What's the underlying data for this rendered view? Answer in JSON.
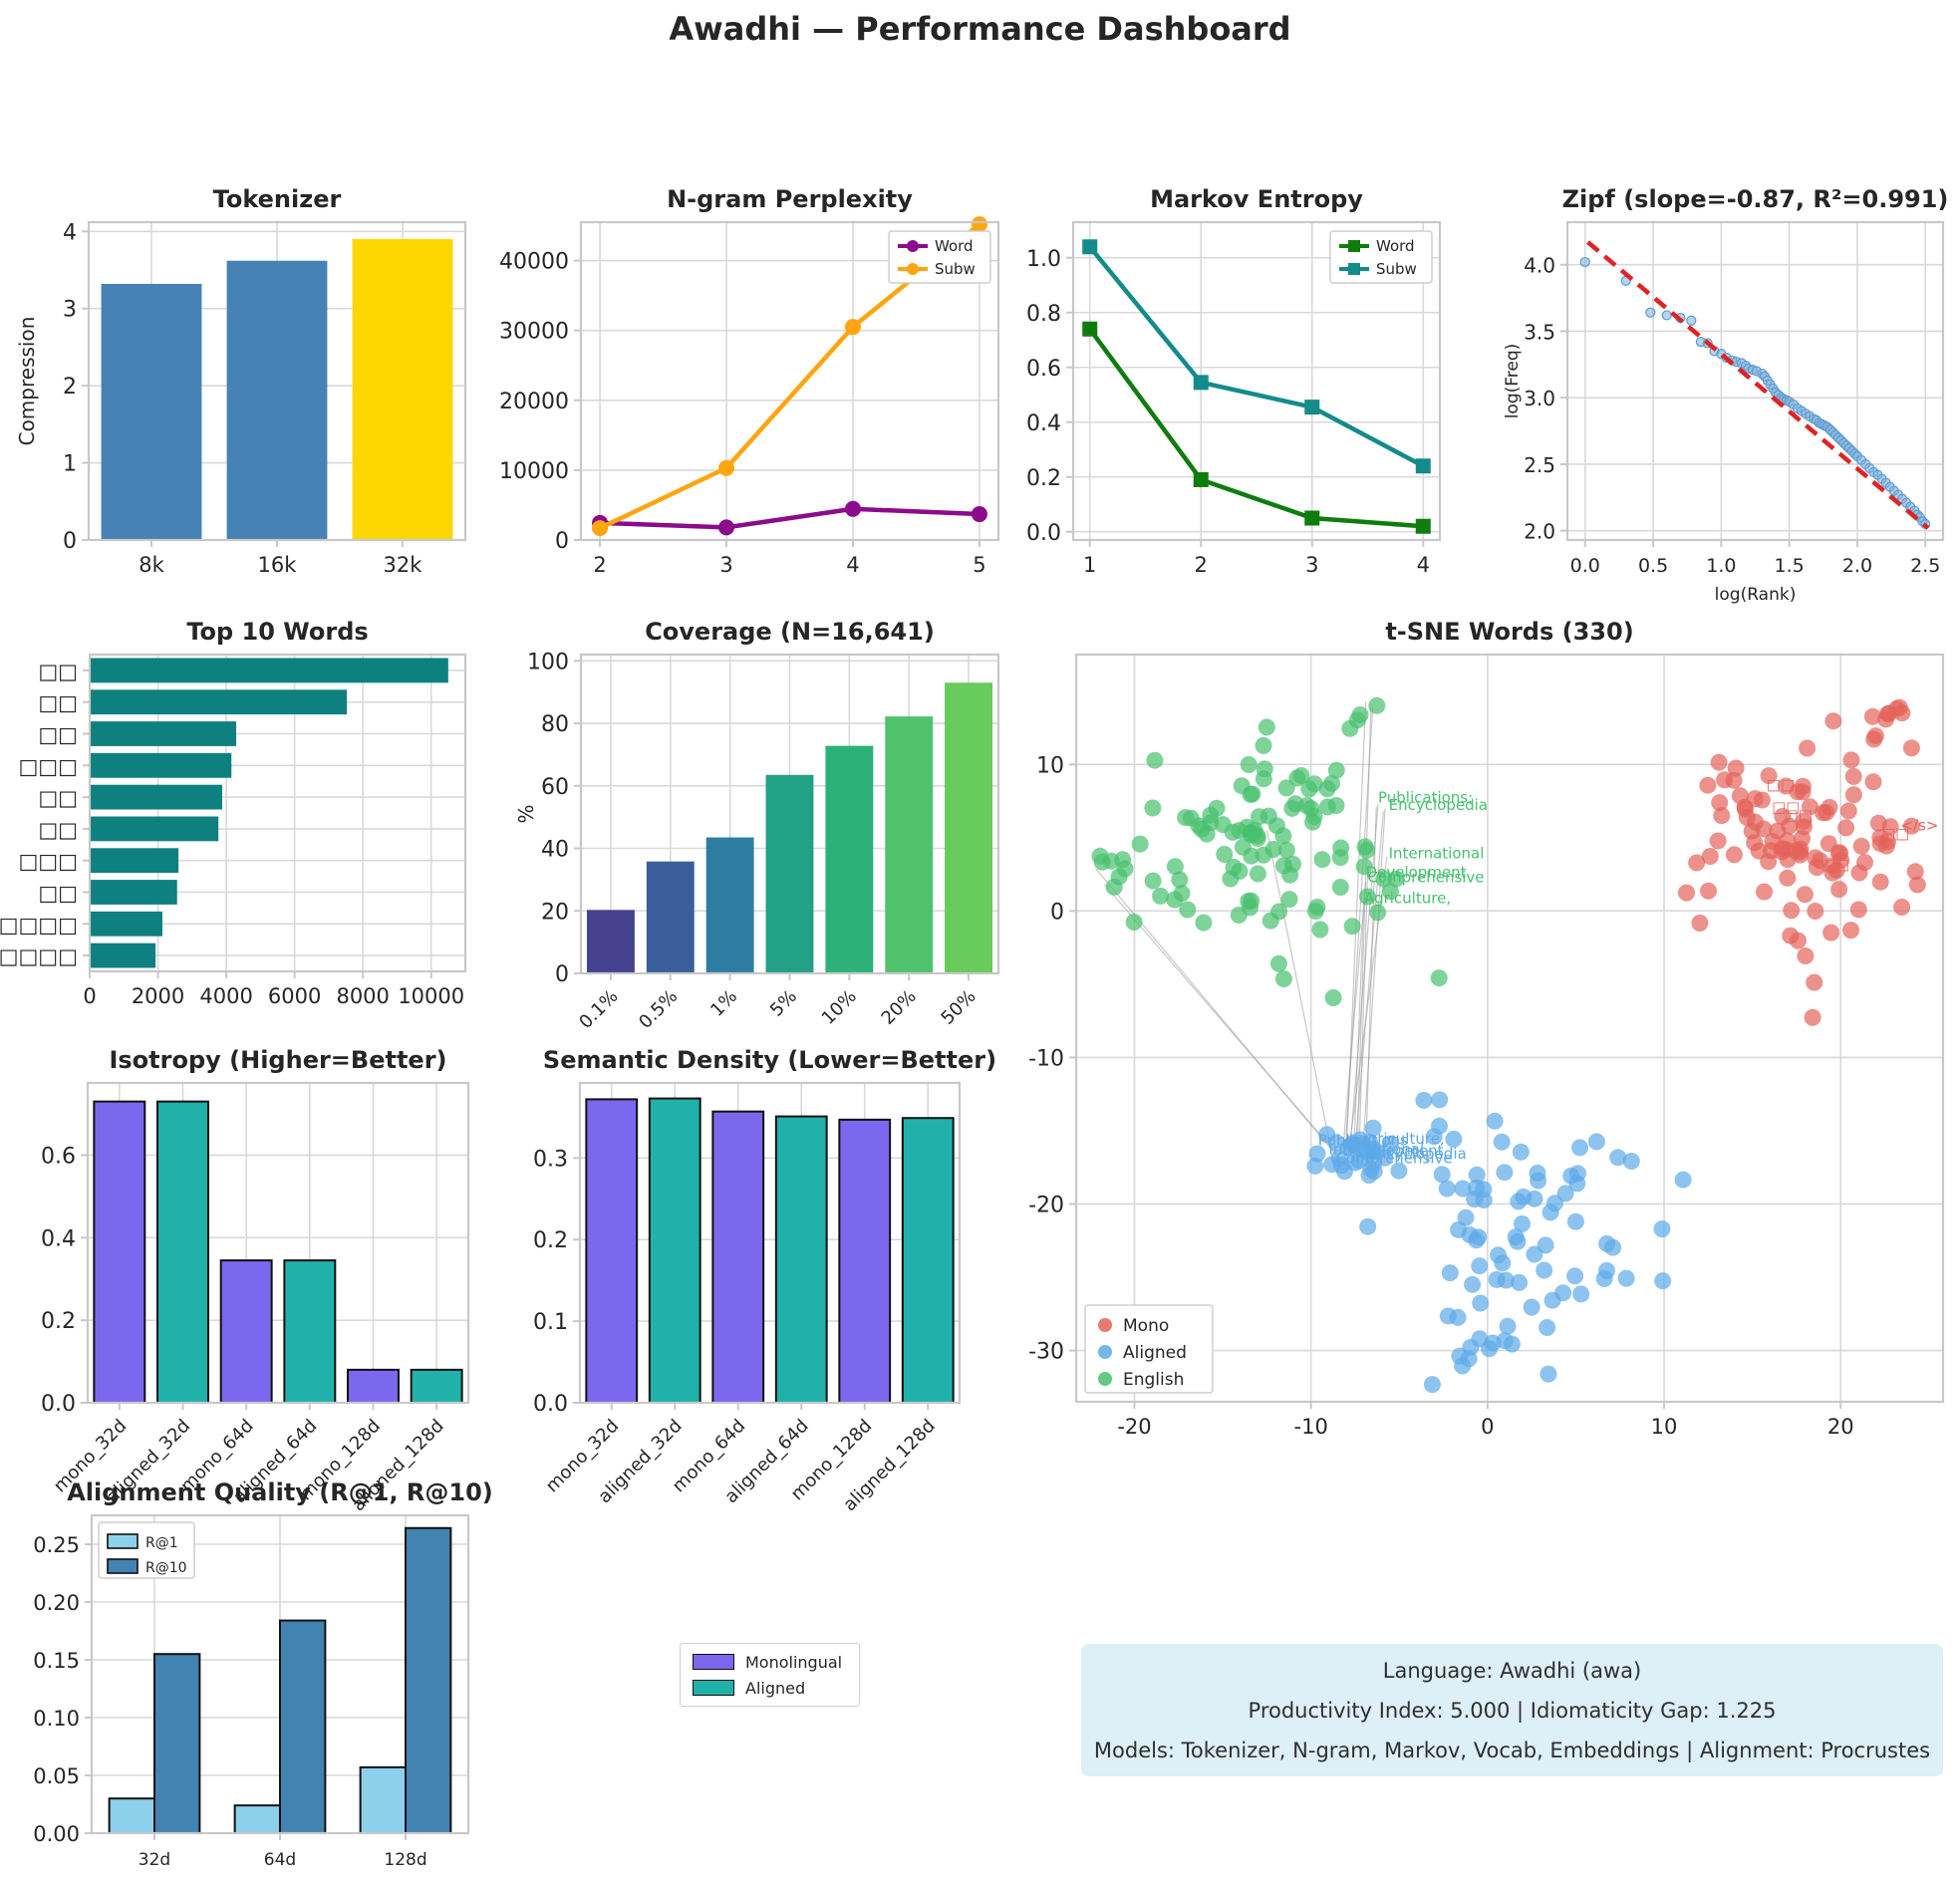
{
  "title": "Awadhi — Performance Dashboard",
  "info_box": {
    "bg": "#ddeff7",
    "lines": [
      "Language: Awadhi (awa)",
      "Productivity Index: 5.000  |  Idiomaticity Gap: 1.225",
      "Models: Tokenizer, N-gram, Markov, Vocab, Embeddings  |  Alignment: Procrustes"
    ]
  },
  "legend_box": {
    "items": [
      {
        "label": "Monolingual",
        "color": "#7b68ee"
      },
      {
        "label": "Aligned",
        "color": "#20b2aa"
      }
    ]
  },
  "chart_data": [
    {
      "id": "tokenizer",
      "type": "bar",
      "title": "Tokenizer",
      "ylabel": "Compression",
      "categories": [
        "8k",
        "16k",
        "32k"
      ],
      "values": [
        3.32,
        3.62,
        3.9
      ],
      "colors": [
        "#4682b4",
        "#4682b4",
        "#ffd500"
      ],
      "ylim": [
        0,
        4.12
      ],
      "yticks": [
        0,
        1,
        2,
        3,
        4
      ],
      "ytick_labels": [
        "0",
        "1",
        "2",
        "3",
        "4"
      ],
      "grid": true
    },
    {
      "id": "ngram",
      "type": "line",
      "title": "N-gram Perplexity",
      "x": [
        2,
        3,
        4,
        5
      ],
      "xticks": [
        2,
        3,
        4,
        5
      ],
      "xtick_labels": [
        "2",
        "3",
        "4",
        "5"
      ],
      "xlim": [
        1.85,
        5.15
      ],
      "ylim": [
        0,
        45500
      ],
      "yticks": [
        0,
        10000,
        20000,
        30000,
        40000
      ],
      "ytick_labels": [
        "0",
        "10000",
        "20000",
        "30000",
        "40000"
      ],
      "marker": "circle",
      "legend_pos": "top-right",
      "series": [
        {
          "name": "Word",
          "color": "#8c0a8c",
          "values": [
            2450,
            1800,
            4450,
            3700
          ]
        },
        {
          "name": "Subw",
          "color": "#ffa510",
          "values": [
            1700,
            10300,
            30500,
            45200
          ]
        }
      ]
    },
    {
      "id": "markov",
      "type": "line",
      "title": "Markov Entropy",
      "x": [
        1,
        2,
        3,
        4
      ],
      "xticks": [
        1,
        2,
        3,
        4
      ],
      "xtick_labels": [
        "1",
        "2",
        "3",
        "4"
      ],
      "xlim": [
        0.85,
        4.15
      ],
      "ylim": [
        -0.03,
        1.13
      ],
      "yticks": [
        0,
        0.2,
        0.4,
        0.6,
        0.8,
        1.0
      ],
      "ytick_labels": [
        "0.0",
        "0.2",
        "0.4",
        "0.6",
        "0.8",
        "1.0"
      ],
      "marker": "square",
      "legend_pos": "top-right",
      "series": [
        {
          "name": "Word",
          "color": "#0e7d0e",
          "values": [
            0.74,
            0.19,
            0.05,
            0.02
          ]
        },
        {
          "name": "Subw",
          "color": "#148b8b",
          "values": [
            1.04,
            0.545,
            0.455,
            0.24
          ]
        }
      ]
    },
    {
      "id": "zipf",
      "type": "scatter",
      "title": "Zipf (slope=-0.87, R²=0.991)",
      "xlabel": "log(Rank)",
      "ylabel": "log(Freq)",
      "xlim": [
        -0.13,
        2.63
      ],
      "ylim": [
        1.93,
        4.32
      ],
      "xticks": [
        0,
        0.5,
        1,
        1.5,
        2,
        2.5
      ],
      "xtick_labels": [
        "0.0",
        "0.5",
        "1.0",
        "1.5",
        "2.0",
        "2.5"
      ],
      "yticks": [
        2,
        2.5,
        3,
        3.5,
        4
      ],
      "ytick_labels": [
        "2.0",
        "2.5",
        "3.0",
        "3.5",
        "4.0"
      ],
      "point_color": "#7eafdb",
      "point_edge": "#5b9bd0",
      "fit_line": {
        "color": "#e32222",
        "from": [
          0.02,
          4.17
        ],
        "to": [
          2.52,
          2.02
        ]
      },
      "points": [
        [
          0.0,
          4.02
        ],
        [
          0.3,
          3.88
        ],
        [
          0.48,
          3.64
        ],
        [
          0.6,
          3.62
        ],
        [
          0.7,
          3.6
        ],
        [
          0.78,
          3.58
        ],
        [
          0.85,
          3.42
        ],
        [
          0.9,
          3.41
        ],
        [
          0.95,
          3.35
        ],
        [
          1.0,
          3.33
        ],
        [
          1.04,
          3.3
        ],
        [
          1.08,
          3.28
        ],
        [
          1.11,
          3.27
        ],
        [
          1.15,
          3.26
        ],
        [
          1.18,
          3.24
        ],
        [
          1.2,
          3.22
        ],
        [
          1.23,
          3.21
        ],
        [
          1.26,
          3.2
        ],
        [
          1.3,
          3.18
        ],
        [
          1.32,
          3.16
        ],
        [
          1.34,
          3.13
        ],
        [
          1.36,
          3.1
        ],
        [
          1.38,
          3.07
        ],
        [
          1.4,
          3.04
        ],
        [
          1.42,
          3.02
        ],
        [
          1.44,
          3.0
        ],
        [
          1.46,
          2.99
        ],
        [
          1.48,
          2.98
        ],
        [
          1.5,
          2.97
        ],
        [
          1.53,
          2.95
        ],
        [
          1.56,
          2.92
        ],
        [
          1.59,
          2.9
        ],
        [
          1.62,
          2.88
        ],
        [
          1.65,
          2.86
        ],
        [
          1.68,
          2.84
        ],
        [
          1.7,
          2.83
        ],
        [
          1.72,
          2.81
        ],
        [
          1.74,
          2.8
        ],
        [
          1.76,
          2.79
        ],
        [
          1.78,
          2.78
        ],
        [
          1.8,
          2.76
        ],
        [
          1.82,
          2.74
        ],
        [
          1.84,
          2.72
        ],
        [
          1.86,
          2.7
        ],
        [
          1.88,
          2.68
        ],
        [
          1.9,
          2.66
        ],
        [
          1.92,
          2.64
        ],
        [
          1.94,
          2.62
        ],
        [
          1.96,
          2.6
        ],
        [
          1.98,
          2.58
        ],
        [
          2.0,
          2.56
        ],
        [
          2.03,
          2.53
        ],
        [
          2.06,
          2.5
        ],
        [
          2.09,
          2.47
        ],
        [
          2.12,
          2.44
        ],
        [
          2.15,
          2.42
        ],
        [
          2.18,
          2.39
        ],
        [
          2.21,
          2.36
        ],
        [
          2.24,
          2.33
        ],
        [
          2.27,
          2.3
        ],
        [
          2.3,
          2.27
        ],
        [
          2.33,
          2.24
        ],
        [
          2.36,
          2.21
        ],
        [
          2.39,
          2.18
        ],
        [
          2.42,
          2.15
        ],
        [
          2.44,
          2.12
        ],
        [
          2.46,
          2.1
        ],
        [
          2.48,
          2.07
        ],
        [
          2.5,
          2.05
        ]
      ]
    },
    {
      "id": "top_words",
      "type": "hbar",
      "title": "Top 10 Words",
      "categories": [
        "□□",
        "□□",
        "□□",
        "□□□",
        "□□",
        "□□",
        "□□□",
        "□□",
        "□□□□□",
        "□□□□"
      ],
      "values": [
        10500,
        7530,
        4290,
        4150,
        3880,
        3770,
        2600,
        2560,
        2130,
        1930
      ],
      "color": "#0f8080",
      "xlim": [
        0,
        11000
      ],
      "xticks": [
        0,
        2000,
        4000,
        6000,
        8000,
        10000
      ],
      "xtick_labels": [
        "0",
        "2000",
        "4000",
        "6000",
        "8000",
        "10000"
      ]
    },
    {
      "id": "coverage",
      "type": "bar",
      "title": "Coverage (N=16,641)",
      "ylabel": "%",
      "categories": [
        "0.1%",
        "0.5%",
        "1%",
        "5%",
        "10%",
        "20%",
        "50%"
      ],
      "values": [
        20.3,
        35.8,
        43.5,
        63.5,
        72.8,
        82.2,
        93
      ],
      "colors": [
        "#45418f",
        "#3a5f9b",
        "#2d7da0",
        "#22a186",
        "#2cb179",
        "#4ec36b",
        "#68cb5b"
      ],
      "ylim": [
        0,
        102
      ],
      "yticks": [
        0,
        20,
        40,
        60,
        80,
        100
      ],
      "ytick_labels": [
        "0",
        "20",
        "40",
        "60",
        "80",
        "100"
      ],
      "rotate_xticks": 45
    },
    {
      "id": "tsne",
      "type": "scatter-clusters",
      "title": "t-SNE Words (330)",
      "xlim": [
        -23.3,
        25.8
      ],
      "ylim": [
        -33.5,
        17.5
      ],
      "xticks": [
        -20,
        -10,
        0,
        10,
        20
      ],
      "xtick_labels": [
        "-20",
        "-10",
        "0",
        "10",
        "20"
      ],
      "yticks": [
        10,
        0,
        -10,
        -20,
        -30
      ],
      "ytick_labels": [
        "10",
        "0",
        "-10",
        "-20",
        "-30"
      ],
      "legend_pos": "bottom-left",
      "clusters": [
        {
          "name": "Mono",
          "color": "#e4635a",
          "seed": 7,
          "groups": [
            {
              "n": 96,
              "cx": 18.0,
              "cy": 5.2,
              "sx": 3.2,
              "sy": 3.2
            },
            {
              "n": 8,
              "cx": 23.3,
              "cy": 13.5,
              "sx": 1.0,
              "sy": 0.9
            },
            {
              "n": 3,
              "cx": 23.2,
              "cy": 4.8,
              "sx": 0.7,
              "sy": 0.7
            },
            {
              "n": 2,
              "cx": 17.5,
              "cy": -3.0,
              "sx": 0.4,
              "sy": 0.4
            },
            {
              "n": 1,
              "cx": 18.3,
              "cy": -7.2,
              "sx": 0.1,
              "sy": 0.1
            }
          ]
        },
        {
          "name": "Aligned",
          "color": "#5da9e8",
          "seed": 11,
          "groups": [
            {
              "n": 72,
              "cx": 2.2,
              "cy": -21.5,
              "sx": 3.8,
              "sy": 3.8
            },
            {
              "n": 28,
              "cx": -7.7,
              "cy": -16.9,
              "sx": 1.0,
              "sy": 0.85
            },
            {
              "n": 10,
              "cx": 0.6,
              "cy": -29.8,
              "sx": 1.3,
              "sy": 0.9
            }
          ]
        },
        {
          "name": "English",
          "color": "#47c16e",
          "seed": 3,
          "groups": [
            {
              "n": 100,
              "cx": -12.2,
              "cy": 4.8,
              "sx": 4.3,
              "sy": 3.5
            },
            {
              "n": 6,
              "cx": -20.9,
              "cy": 1.8,
              "sx": 0.9,
              "sy": 1.3
            },
            {
              "n": 4,
              "cx": -6.7,
              "cy": 13.6,
              "sx": 0.5,
              "sy": 0.8
            }
          ]
        }
      ],
      "links": {
        "color": "#9a9a9a",
        "pairs": [
          [
            [
              -6.9,
              14.3
            ],
            [
              -8.0,
              -16.6
            ]
          ],
          [
            [
              -6.6,
              14.1
            ],
            [
              -7.4,
              -16.9
            ]
          ],
          [
            [
              -6.2,
              7.3
            ],
            [
              -7.8,
              -16.4
            ]
          ],
          [
            [
              -5.8,
              7.0
            ],
            [
              -7.1,
              -17.0
            ]
          ],
          [
            [
              -5.7,
              3.7
            ],
            [
              -7.9,
              -16.8
            ]
          ],
          [
            [
              -6.8,
              2.3
            ],
            [
              -7.3,
              -17.4
            ]
          ],
          [
            [
              -6.9,
              2.0
            ],
            [
              -8.2,
              -16.5
            ]
          ],
          [
            [
              -7.0,
              0.6
            ],
            [
              -7.6,
              -17.1
            ]
          ],
          [
            [
              -22.2,
              2.9
            ],
            [
              -8.4,
              -16.9
            ]
          ],
          [
            [
              -21.7,
              1.8
            ],
            [
              -7.8,
              -17.6
            ]
          ],
          [
            [
              -12.5,
              5.5
            ],
            [
              -8.8,
              -16.7
            ]
          ],
          [
            [
              -6.3,
              7.1
            ],
            [
              -6.9,
              -16.8
            ]
          ],
          [
            [
              -5.9,
              6.8
            ],
            [
              -7.5,
              -16.2
            ]
          ],
          [
            [
              -6.5,
              13.9
            ],
            [
              -8.1,
              -17.2
            ]
          ]
        ]
      },
      "annotations": [
        {
          "text": "Publications;",
          "x": -6.2,
          "y": 7.4,
          "color": "#47c16e"
        },
        {
          "text": "Encyclopedia",
          "x": -5.6,
          "y": 6.9,
          "color": "#47c16e"
        },
        {
          "text": "International",
          "x": -5.6,
          "y": 3.6,
          "color": "#47c16e"
        },
        {
          "text": "Development",
          "x": -6.9,
          "y": 2.3,
          "color": "#47c16e"
        },
        {
          "text": "Comprehensive",
          "x": -6.8,
          "y": 1.95,
          "color": "#47c16e"
        },
        {
          "text": "Agriculture,",
          "x": -7.0,
          "y": 0.55,
          "color": "#47c16e"
        },
        {
          "text": "□□",
          "x": 15.8,
          "y": 8.3,
          "color": "#e4635a"
        },
        {
          "text": "□□",
          "x": 16.1,
          "y": 6.75,
          "color": "#e4635a"
        },
        {
          "text": "□□",
          "x": 16.8,
          "y": 6.2,
          "color": "#e4635a"
        },
        {
          "text": "□□",
          "x": 18.9,
          "y": 2.85,
          "color": "#e4635a"
        },
        {
          "text": "</s>",
          "x": 23.4,
          "y": 5.5,
          "color": "#e4635a"
        },
        {
          "text": "□□",
          "x": 22.3,
          "y": 4.95,
          "color": "#e4635a"
        },
        {
          "text": "Publications",
          "x": -9.6,
          "y": -16.0,
          "color": "#5da9e8"
        },
        {
          "text": "agriculture,",
          "x": -7.3,
          "y": -15.9,
          "color": "#5da9e8"
        },
        {
          "text": "International",
          "x": -9.0,
          "y": -16.6,
          "color": "#5da9e8"
        },
        {
          "text": "Encyclopedia",
          "x": -6.8,
          "y": -16.9,
          "color": "#5da9e8"
        },
        {
          "text": "Development",
          "x": -8.2,
          "y": -16.7,
          "color": "#5da9e8"
        },
        {
          "text": "Comprehensive",
          "x": -8.6,
          "y": -17.2,
          "color": "#5da9e8"
        }
      ]
    },
    {
      "id": "isotropy",
      "type": "bar",
      "title": "Isotropy (Higher=Better)",
      "categories": [
        "mono_32d",
        "aligned_32d",
        "mono_64d",
        "aligned_64d",
        "mono_128d",
        "aligned_128d"
      ],
      "values": [
        0.73,
        0.73,
        0.345,
        0.345,
        0.08,
        0.08
      ],
      "colors": [
        "#7b68ee",
        "#20b2aa",
        "#7b68ee",
        "#20b2aa",
        "#7b68ee",
        "#20b2aa"
      ],
      "edge": "#111111",
      "ylim": [
        0,
        0.775
      ],
      "yticks": [
        0,
        0.2,
        0.4,
        0.6
      ],
      "ytick_labels": [
        "0.0",
        "0.2",
        "0.4",
        "0.6"
      ],
      "rotate_xticks": 45
    },
    {
      "id": "semantic_density",
      "type": "bar",
      "title": "Semantic Density (Lower=Better)",
      "categories": [
        "mono_32d",
        "aligned_32d",
        "mono_64d",
        "aligned_64d",
        "mono_128d",
        "aligned_128d"
      ],
      "values": [
        0.372,
        0.373,
        0.357,
        0.351,
        0.347,
        0.349
      ],
      "colors": [
        "#7b68ee",
        "#20b2aa",
        "#7b68ee",
        "#20b2aa",
        "#7b68ee",
        "#20b2aa"
      ],
      "edge": "#111111",
      "ylim": [
        0,
        0.392
      ],
      "yticks": [
        0,
        0.1,
        0.2,
        0.3
      ],
      "ytick_labels": [
        "0.0",
        "0.1",
        "0.2",
        "0.3"
      ],
      "rotate_xticks": 45
    },
    {
      "id": "alignment",
      "type": "grouped-bar",
      "title": "Alignment Quality (R@1, R@10)",
      "categories": [
        "32d",
        "64d",
        "128d"
      ],
      "series": [
        {
          "name": "R@1",
          "color": "#8dd0ec",
          "values": [
            0.03,
            0.024,
            0.057
          ]
        },
        {
          "name": "R@10",
          "color": "#4283b2",
          "values": [
            0.155,
            0.184,
            0.264
          ]
        }
      ],
      "edge": "#111111",
      "ylim": [
        0,
        0.275
      ],
      "yticks": [
        0,
        0.05,
        0.1,
        0.15,
        0.2,
        0.25
      ],
      "ytick_labels": [
        "0.00",
        "0.05",
        "0.10",
        "0.15",
        "0.20",
        "0.25"
      ],
      "legend_pos": "top-left"
    }
  ]
}
